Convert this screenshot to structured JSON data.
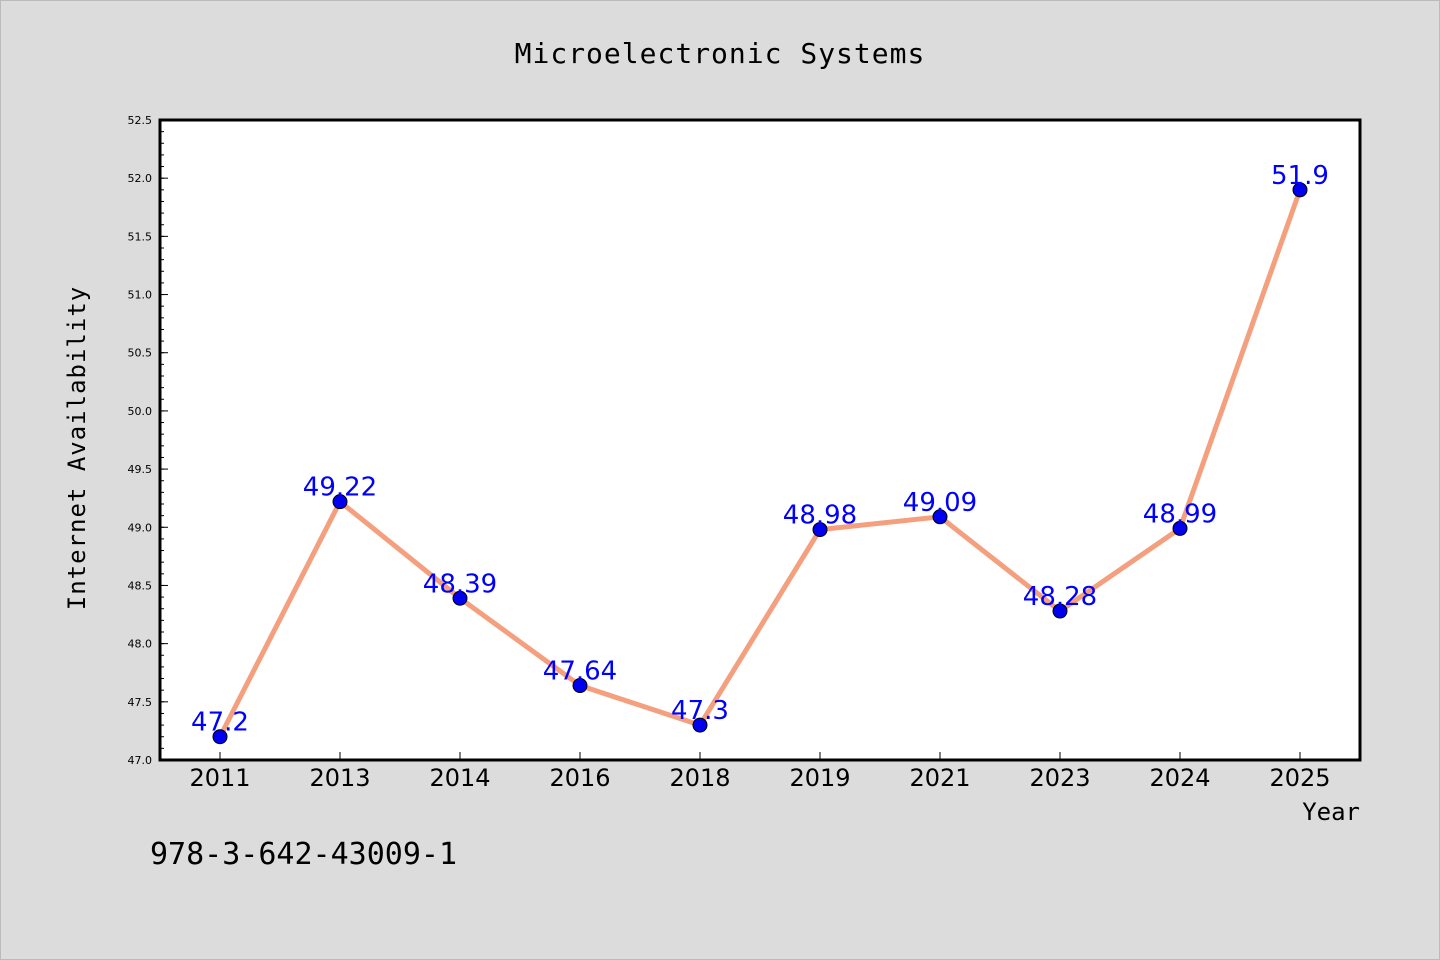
{
  "chart_data": {
    "type": "line",
    "title": "Microelectronic Systems",
    "xlabel": "Year",
    "ylabel": "Internet Availability",
    "categories": [
      "2011",
      "2013",
      "2014",
      "2016",
      "2018",
      "2019",
      "2021",
      "2023",
      "2024",
      "2025"
    ],
    "series": [
      {
        "values": [
          47.2,
          49.22,
          48.39,
          47.64,
          47.3,
          48.98,
          49.09,
          48.28,
          48.99,
          51.9
        ],
        "data_labels": [
          "47.2",
          "49.22",
          "48.39",
          "47.64",
          "47.3",
          "48.98",
          "49.09",
          "48.28",
          "48.99",
          "51.9"
        ],
        "line_color": "#f4a07e",
        "marker_color": "#0000ee",
        "label_color": "#0000ff"
      }
    ],
    "ylim": [
      47.0,
      52.5
    ],
    "yticks": [
      "47.0",
      "47.5",
      "48.0",
      "48.5",
      "49.0",
      "49.5",
      "50.0",
      "50.5",
      "51.0",
      "51.5",
      "52.0",
      "52.5"
    ],
    "grid": false,
    "legend": "none"
  },
  "annotation": "978-3-642-43009-1"
}
